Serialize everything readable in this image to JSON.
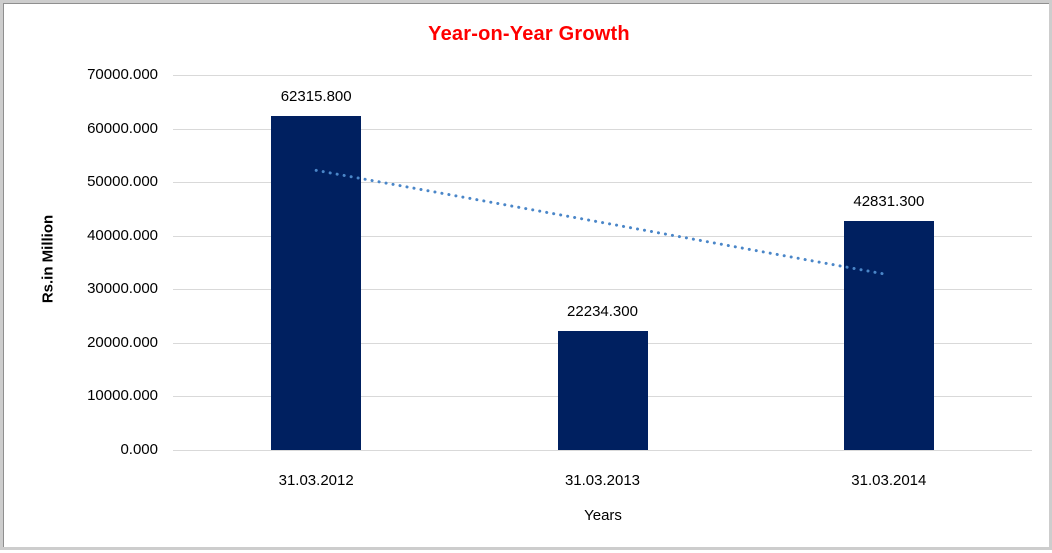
{
  "chart_data": {
    "type": "bar",
    "title": "Year-on-Year Growth",
    "xlabel": "Years",
    "ylabel": "Rs.in Million",
    "categories": [
      "31.03.2012",
      "31.03.2013",
      "31.03.2014"
    ],
    "values": [
      62315.8,
      22234.3,
      42831.3
    ],
    "data_labels": [
      "62315.800",
      "22234.300",
      "42831.300"
    ],
    "y_ticks": [
      {
        "value": 0,
        "label": "0.000"
      },
      {
        "value": 10000,
        "label": "10000.000"
      },
      {
        "value": 20000,
        "label": "20000.000"
      },
      {
        "value": 30000,
        "label": "30000.000"
      },
      {
        "value": 40000,
        "label": "40000.000"
      },
      {
        "value": 50000,
        "label": "50000.000"
      },
      {
        "value": 60000,
        "label": "60000.000"
      },
      {
        "value": 70000,
        "label": "70000.000"
      }
    ],
    "ylim": [
      0,
      70000
    ],
    "grid": true,
    "legend": "none",
    "colors": {
      "bar": "#002060",
      "title": "#FF0000",
      "gridline": "#D9D9D9",
      "trendline": "#4A86C8",
      "text": "#000000",
      "frame_border": "#CDCDCD"
    },
    "trendline": {
      "style": "dotted",
      "color": "#4A86C8",
      "from_category": "31.03.2012",
      "to_category": "31.03.2014",
      "start_value": 52200,
      "end_value": 32700
    }
  }
}
